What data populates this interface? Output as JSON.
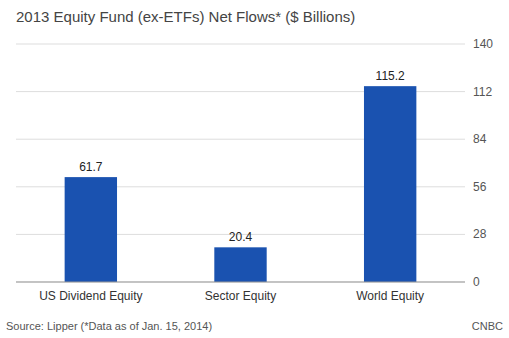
{
  "chart_data": {
    "type": "bar",
    "title": "2013 Equity Fund (ex-ETFs) Net Flows* ($ Billions)",
    "categories": [
      "US Dividend Equity",
      "Sector Equity",
      "World Equity"
    ],
    "values": [
      61.7,
      20.4,
      115.2
    ],
    "color": "#1a52b0",
    "ylim": [
      0,
      140
    ],
    "yticks": [
      0,
      28,
      56,
      84,
      112,
      140
    ],
    "grid": true,
    "data_labels": true,
    "annotations": [
      "Source: Lipper (*Data as of Jan. 15, 2014)",
      "CNBC"
    ]
  }
}
